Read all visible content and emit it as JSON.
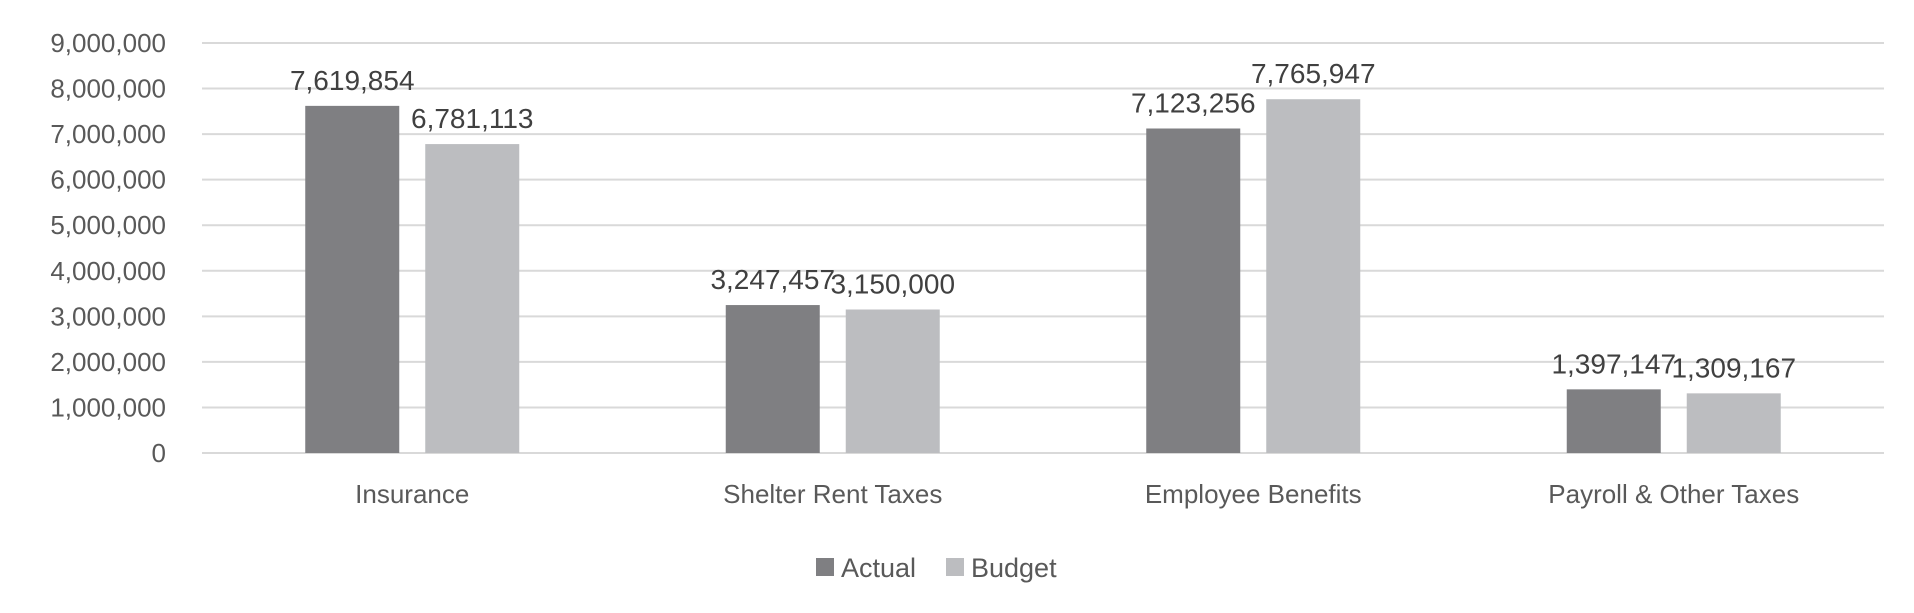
{
  "chart_data": {
    "type": "bar",
    "title": "",
    "xlabel": "",
    "ylabel": "",
    "categories": [
      "Insurance",
      "Shelter Rent Taxes",
      "Employee Benefits",
      "Payroll & Other Taxes"
    ],
    "series": [
      {
        "name": "Actual",
        "values": [
          7619854,
          3247457,
          7123256,
          1397147
        ],
        "labels": [
          "7,619,854",
          "3,247,457",
          "7,123,256",
          "1,397,147"
        ],
        "color": "#7f7f82"
      },
      {
        "name": "Budget",
        "values": [
          6781113,
          3150000,
          7765947,
          1309167
        ],
        "labels": [
          "6,781,113",
          "3,150,000",
          "7,765,947",
          "1,309,167"
        ],
        "color": "#bcbdc0"
      }
    ],
    "ylim": [
      0,
      9000000
    ],
    "yticks": [
      0,
      1000000,
      2000000,
      3000000,
      4000000,
      5000000,
      6000000,
      7000000,
      8000000,
      9000000
    ],
    "ytick_labels": [
      "0",
      "1,000,000",
      "2,000,000",
      "3,000,000",
      "4,000,000",
      "5,000,000",
      "6,000,000",
      "7,000,000",
      "8,000,000",
      "9,000,000"
    ],
    "grid": true,
    "legend": "bottom"
  }
}
